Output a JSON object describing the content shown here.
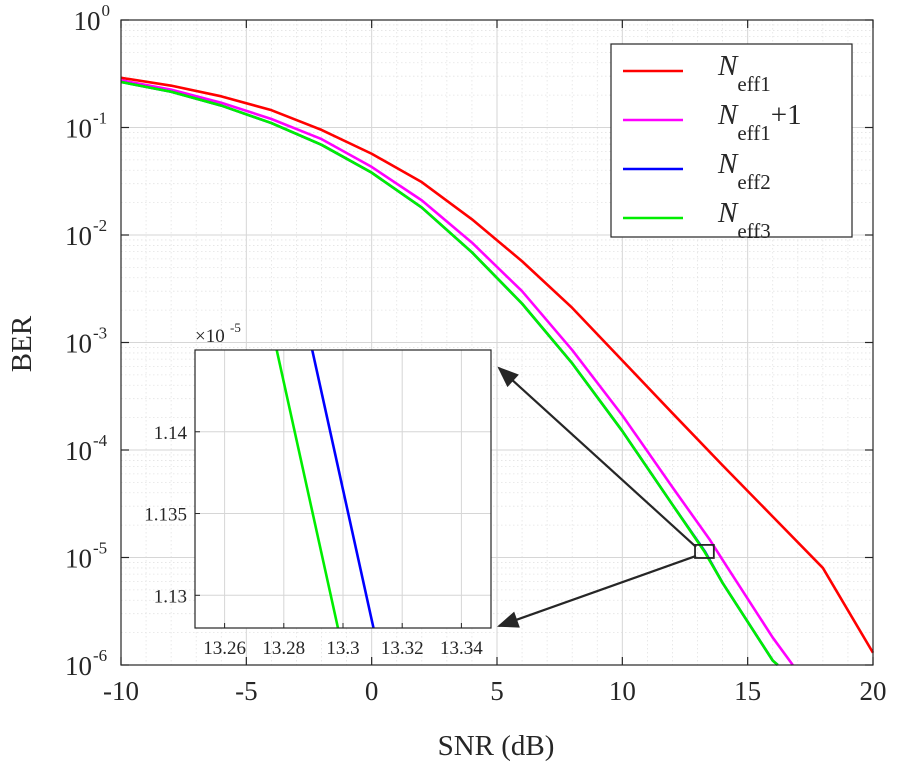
{
  "chart_data": {
    "type": "line",
    "xscale": "linear",
    "yscale": "log",
    "xlabel": "SNR (dB)",
    "ylabel": "BER",
    "xlim": [
      -10,
      20
    ],
    "ylim": [
      1e-06,
      1
    ],
    "grid": true,
    "minor_grid": true,
    "legend_position": "top-right",
    "x_ticks": [
      -10,
      -5,
      0,
      5,
      10,
      15,
      20
    ],
    "x_tick_labels": [
      "-10",
      "-5",
      "0",
      "5",
      "10",
      "15",
      "20"
    ],
    "y_ticks": [
      {
        "value": 1,
        "base": "10",
        "exp": "0"
      },
      {
        "value": 0.1,
        "base": "10",
        "exp": "-1"
      },
      {
        "value": 0.01,
        "base": "10",
        "exp": "-2"
      },
      {
        "value": 0.001,
        "base": "10",
        "exp": "-3"
      },
      {
        "value": 0.0001,
        "base": "10",
        "exp": "-4"
      },
      {
        "value": 1e-05,
        "base": "10",
        "exp": "-5"
      },
      {
        "value": 1e-06,
        "base": "10",
        "exp": "-6"
      }
    ],
    "series": [
      {
        "name": "Neff1",
        "base": "N",
        "sub": "eff1",
        "suffix": "",
        "color": "#ff0000",
        "x": [
          -10,
          -8,
          -6,
          -4,
          -2,
          0,
          2,
          4,
          6,
          8,
          10,
          12,
          14,
          16,
          18,
          20
        ],
        "y": [
          0.29,
          0.245,
          0.195,
          0.145,
          0.095,
          0.057,
          0.031,
          0.014,
          0.0057,
          0.0021,
          0.00068,
          0.00022,
          7.2e-05,
          2.4e-05,
          8e-06,
          1.3e-06
        ]
      },
      {
        "name": "Neff1+1",
        "base": "N",
        "sub": "eff1",
        "suffix": "+1",
        "color": "#ff00ff",
        "x": [
          -10,
          -8,
          -6,
          -4,
          -2,
          0,
          2,
          4,
          6,
          8,
          10,
          12,
          13.5,
          14,
          16,
          16.8
        ],
        "y": [
          0.275,
          0.225,
          0.17,
          0.12,
          0.078,
          0.043,
          0.021,
          0.0085,
          0.003,
          0.00085,
          0.00021,
          4.5e-05,
          1.45e-05,
          9.5e-06,
          1.8e-06,
          1e-06
        ]
      },
      {
        "name": "Neff2",
        "base": "N",
        "sub": "eff2",
        "suffix": "",
        "color": "#0000ff",
        "x": [
          -10,
          -8,
          -6,
          -4,
          -2,
          0,
          2,
          4,
          6,
          8,
          10,
          12,
          13.3,
          14,
          16,
          16.2
        ],
        "y": [
          0.265,
          0.215,
          0.16,
          0.11,
          0.069,
          0.038,
          0.018,
          0.0069,
          0.0023,
          0.00064,
          0.00015,
          3.1e-05,
          1.13e-05,
          5.8e-06,
          1.1e-06,
          1e-06
        ]
      },
      {
        "name": "Neff3",
        "base": "N",
        "sub": "eff3",
        "suffix": "",
        "color": "#00ee00",
        "x": [
          -10,
          -8,
          -6,
          -4,
          -2,
          0,
          2,
          4,
          6,
          8,
          10,
          12,
          13.28,
          14,
          16,
          16.2
        ],
        "y": [
          0.265,
          0.215,
          0.16,
          0.11,
          0.069,
          0.038,
          0.018,
          0.0069,
          0.0023,
          0.00064,
          0.00015,
          3.1e-05,
          1.13e-05,
          5.8e-06,
          1.1e-06,
          1e-06
        ]
      }
    ],
    "zoom_box": {
      "x": [
        12.9,
        13.65
      ],
      "y": [
        9.9e-06,
        1.31e-05
      ]
    },
    "inset": {
      "xlim": [
        13.25,
        13.35
      ],
      "ylim": [
        1.128e-05,
        1.145e-05
      ],
      "x_ticks": [
        13.26,
        13.28,
        13.3,
        13.32,
        13.34
      ],
      "x_tick_labels": [
        "13.26",
        "13.28",
        "13.3",
        "13.32",
        "13.34"
      ],
      "y_ticks": [
        1.13e-05,
        1.135e-05,
        1.14e-05
      ],
      "y_tick_labels": [
        "1.13",
        "1.135",
        "1.14"
      ],
      "y_multiplier": {
        "base": "×10",
        "exp": "-5"
      },
      "series": [
        {
          "name": "Neff3",
          "color": "#00ee00",
          "x": [
            13.2776,
            13.2983
          ],
          "y": [
            1.145e-05,
            1.128e-05
          ]
        },
        {
          "name": "Neff2",
          "color": "#0000ff",
          "x": [
            13.2896,
            13.3103
          ],
          "y": [
            1.145e-05,
            1.128e-05
          ]
        }
      ]
    }
  }
}
